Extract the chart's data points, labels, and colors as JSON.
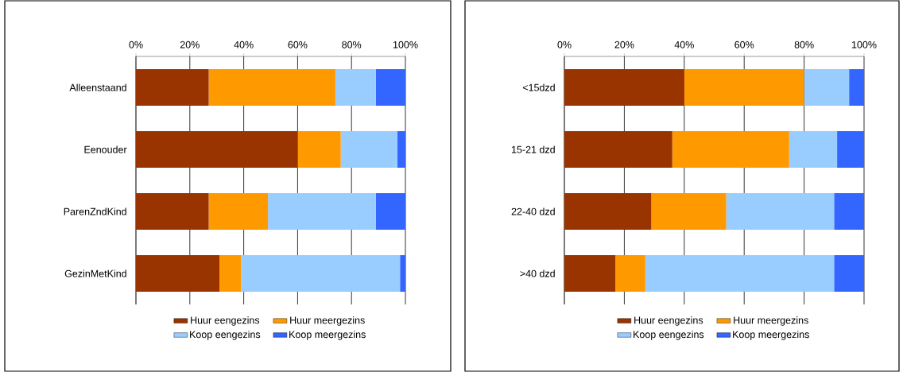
{
  "chart_data": [
    {
      "type": "bar",
      "orientation": "horizontal",
      "stacked": true,
      "grid": "x",
      "legend": "bottom",
      "categories": [
        "Alleenstaand",
        "Eenouder",
        "ParenZndKind",
        "GezinMetKind"
      ],
      "xlim": [
        0,
        100
      ],
      "xticks": [
        {
          "value": 0,
          "label": "0%"
        },
        {
          "value": 20,
          "label": "20%"
        },
        {
          "value": 40,
          "label": "40%"
        },
        {
          "value": 60,
          "label": "60%"
        },
        {
          "value": 80,
          "label": "80%"
        },
        {
          "value": 100,
          "label": "100%"
        }
      ],
      "series": [
        {
          "name": "Huur eengezins",
          "color": "#993300",
          "values": [
            27,
            60,
            27,
            31
          ]
        },
        {
          "name": "Huur meergezins",
          "color": "#ff9900",
          "values": [
            47,
            16,
            22,
            8
          ]
        },
        {
          "name": "Koop eengezins",
          "color": "#99ccff",
          "values": [
            15,
            21,
            40,
            59
          ]
        },
        {
          "name": "Koop meergezins",
          "color": "#3366ff",
          "values": [
            11,
            3,
            11,
            2
          ]
        }
      ]
    },
    {
      "type": "bar",
      "orientation": "horizontal",
      "stacked": true,
      "grid": "x",
      "legend": "bottom",
      "categories": [
        "<15dzd",
        "15-21 dzd",
        "22-40 dzd",
        ">40 dzd"
      ],
      "xlim": [
        0,
        100
      ],
      "xticks": [
        {
          "value": 0,
          "label": "0%"
        },
        {
          "value": 20,
          "label": "20%"
        },
        {
          "value": 40,
          "label": "40%"
        },
        {
          "value": 60,
          "label": "60%"
        },
        {
          "value": 80,
          "label": "80%"
        },
        {
          "value": 100,
          "label": "100%"
        }
      ],
      "series": [
        {
          "name": "Huur eengezins",
          "color": "#993300",
          "values": [
            40,
            36,
            29,
            17
          ]
        },
        {
          "name": "Huur meergezins",
          "color": "#ff9900",
          "values": [
            40,
            39,
            25,
            10
          ]
        },
        {
          "name": "Koop eengezins",
          "color": "#99ccff",
          "values": [
            15,
            16,
            36,
            63
          ]
        },
        {
          "name": "Koop meergezins",
          "color": "#3366ff",
          "values": [
            5,
            9,
            10,
            10
          ]
        }
      ]
    }
  ]
}
